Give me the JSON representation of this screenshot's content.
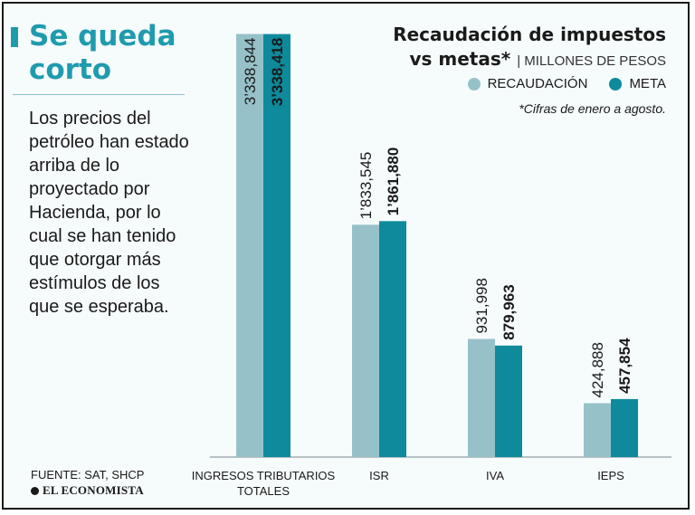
{
  "headline": "Se queda corto",
  "description": "Los precios del petróleo han estado arriba de lo proyectado por Hacienda, por lo cual se han tenido que otorgar más estímulos de los que se esperaba.",
  "source": "FUENTE: SAT, SHCP",
  "logo": "EL ECONOMISTA",
  "colors": {
    "accent": "#1f9bae",
    "recaudacion": "#97c1c9",
    "meta": "#0e8a9c"
  },
  "chart_data": {
    "type": "bar",
    "title": "Recaudación de impuestos vs metas*",
    "title_line1": "Recaudación de impuestos",
    "title_line2": "vs metas*",
    "subtitle": "MILLONES DE PESOS",
    "footnote": "*Cifras de enero a agosto.",
    "categories": [
      "INGRESOS TRIBUTARIOS TOTALES",
      "ISR",
      "IVA",
      "IEPS"
    ],
    "series": [
      {
        "name": "RECAUDACIÓN",
        "values": [
          3338844,
          1833545,
          931998,
          424888
        ],
        "labels": [
          "3’338,844",
          "1’833,545",
          "931,998",
          "424,888"
        ]
      },
      {
        "name": "META",
        "values": [
          3338418,
          1861880,
          879963,
          457854
        ],
        "labels": [
          "3’338,418",
          "1’861,880",
          "879,963",
          "457,854"
        ]
      }
    ],
    "ylim": [
      0,
      3400000
    ]
  }
}
